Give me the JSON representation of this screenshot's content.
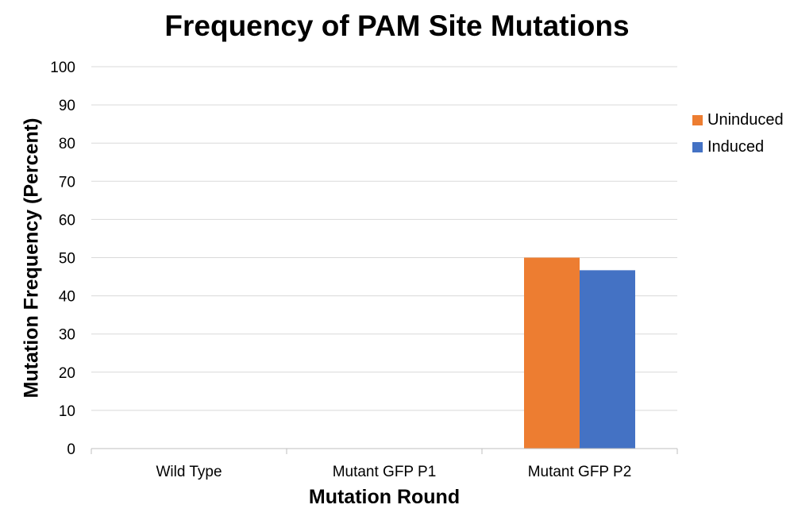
{
  "chart_data": {
    "type": "bar",
    "title": "Frequency of PAM Site Mutations",
    "xlabel": "Mutation Round",
    "ylabel": "Mutation Frequency (Percent)",
    "categories": [
      "Wild Type",
      "Mutant GFP P1",
      "Mutant GFP P2"
    ],
    "series": [
      {
        "name": "Uninduced",
        "color": "#ED7D31",
        "values": [
          0,
          0,
          50
        ]
      },
      {
        "name": "Induced",
        "color": "#4472C4",
        "values": [
          0,
          0,
          46.7
        ]
      }
    ],
    "ylim": [
      0,
      100
    ],
    "yticks": [
      "0",
      "10",
      "20",
      "30",
      "40",
      "50",
      "60",
      "70",
      "80",
      "90",
      "100"
    ],
    "grid": true,
    "legend_position": "right"
  }
}
